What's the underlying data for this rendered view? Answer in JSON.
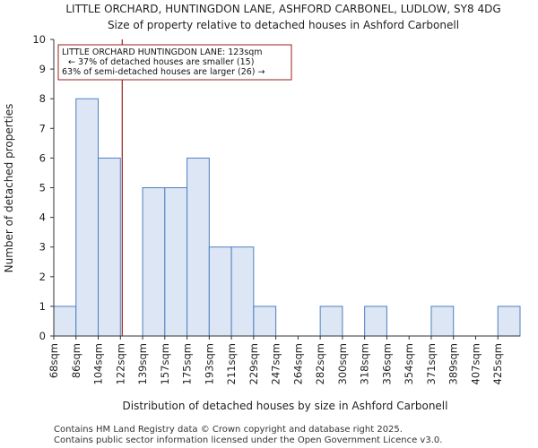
{
  "chart_data": {
    "type": "bar",
    "title": "LITTLE ORCHARD, HUNTINGDON LANE, ASHFORD CARBONEL, LUDLOW, SY8 4DG",
    "subtitle": "Size of property relative to detached houses in Ashford Carbonell",
    "xlabel": "Distribution of detached houses by size in Ashford Carbonell",
    "ylabel": "Number of detached properties",
    "categories": [
      "68sqm",
      "86sqm",
      "104sqm",
      "122sqm",
      "139sqm",
      "157sqm",
      "175sqm",
      "193sqm",
      "211sqm",
      "229sqm",
      "247sqm",
      "264sqm",
      "282sqm",
      "300sqm",
      "318sqm",
      "336sqm",
      "354sqm",
      "371sqm",
      "389sqm",
      "407sqm",
      "425sqm"
    ],
    "values": [
      1,
      8,
      6,
      0,
      5,
      5,
      6,
      3,
      3,
      1,
      0,
      0,
      1,
      0,
      1,
      0,
      0,
      1,
      0,
      0,
      1
    ],
    "ylim": [
      0,
      10
    ],
    "yticks": [
      0,
      1,
      2,
      3,
      4,
      5,
      6,
      7,
      8,
      9,
      10
    ],
    "marker_value_sqm": 123,
    "annotation": {
      "line1": "LITTLE ORCHARD HUNTINGDON LANE: 123sqm",
      "line2": "← 37% of detached houses are smaller (15)",
      "line3": "63% of semi-detached houses are larger (26) →"
    },
    "colors": {
      "bar_fill": "#dce6f5",
      "bar_stroke": "#4f7fc0",
      "marker": "#9b1c1c",
      "axis": "#333333"
    }
  },
  "footer": {
    "line1": "Contains HM Land Registry data © Crown copyright and database right 2025.",
    "line2": "Contains public sector information licensed under the Open Government Licence v3.0."
  }
}
